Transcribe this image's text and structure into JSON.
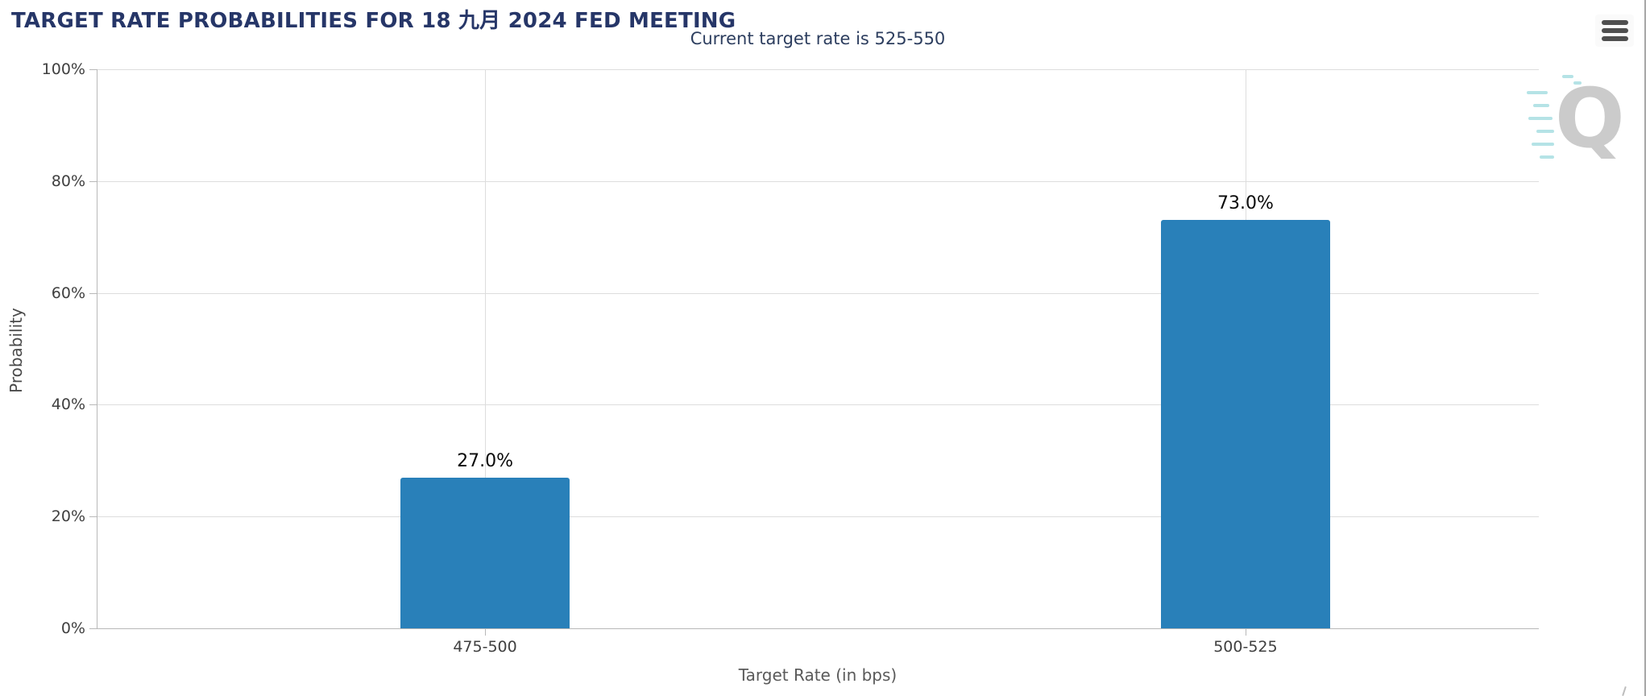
{
  "header": {
    "title": "TARGET RATE PROBABILITIES FOR 18 九月 2024 FED MEETING"
  },
  "menu": {
    "icon": "hamburger-icon"
  },
  "watermark": {
    "letter": "Q"
  },
  "chart_data": {
    "type": "bar",
    "subtitle": "Current target rate is 525-550",
    "categories": [
      "475-500",
      "500-525"
    ],
    "values": [
      27.0,
      73.0
    ],
    "value_labels": [
      "27.0%",
      "73.0%"
    ],
    "xlabel": "Target Rate (in bps)",
    "ylabel": "Probability",
    "ylim": [
      0,
      100
    ],
    "y_ticks": [
      0,
      20,
      40,
      60,
      80,
      100
    ],
    "y_tick_labels": [
      "0%",
      "20%",
      "40%",
      "60%",
      "80%",
      "100%"
    ],
    "bar_color": "#2980b9",
    "grid": true,
    "legend": false
  },
  "colors": {
    "title": "#263668",
    "subtitle": "#2d3e5f",
    "bar": "#2980b9",
    "gridline": "#dddddd",
    "axis": "#b8b8b8",
    "tick_text": "#404040",
    "watermark": "#cbcbcb",
    "watermark_lines": "#b5e3e6"
  }
}
